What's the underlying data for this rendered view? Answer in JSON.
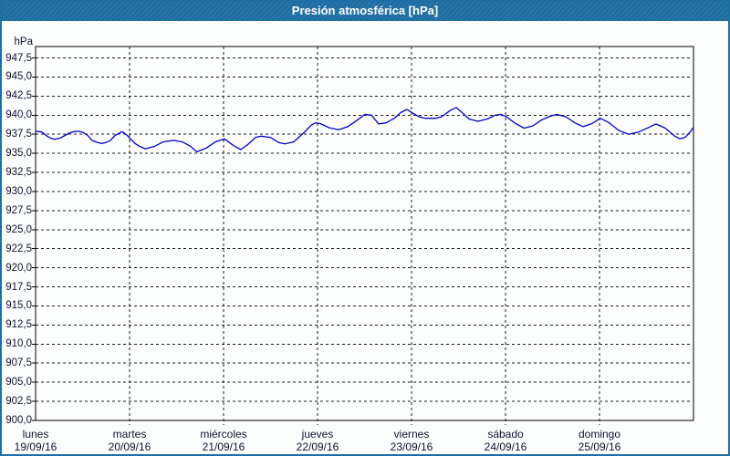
{
  "title": "Presión atmosférica [hPa]",
  "colors": {
    "title_bar": "#1E6FA5",
    "window_border": "#1E6FA5",
    "series_line": "#0000C8",
    "grid": "#1a1a1a",
    "axis_text": "#101030",
    "background": "#FCFEFD"
  },
  "y_axis": {
    "unit": "hPa",
    "ticks": [
      {
        "value": 947.5,
        "label": "947,5"
      },
      {
        "value": 945.0,
        "label": "945,0"
      },
      {
        "value": 942.5,
        "label": "942,5"
      },
      {
        "value": 940.0,
        "label": "940,0"
      },
      {
        "value": 937.5,
        "label": "937,5"
      },
      {
        "value": 935.0,
        "label": "935,0"
      },
      {
        "value": 932.5,
        "label": "932,5"
      },
      {
        "value": 930.0,
        "label": "930,0"
      },
      {
        "value": 927.5,
        "label": "927,5"
      },
      {
        "value": 925.0,
        "label": "925,0"
      },
      {
        "value": 922.5,
        "label": "922,5"
      },
      {
        "value": 920.0,
        "label": "920,0"
      },
      {
        "value": 917.5,
        "label": "917,5"
      },
      {
        "value": 915.0,
        "label": "915,0"
      },
      {
        "value": 912.5,
        "label": "912,5"
      },
      {
        "value": 910.0,
        "label": "910,0"
      },
      {
        "value": 907.5,
        "label": "907,5"
      },
      {
        "value": 905.0,
        "label": "905,0"
      },
      {
        "value": 902.5,
        "label": "902,5"
      },
      {
        "value": 900.0,
        "label": "900,0"
      }
    ]
  },
  "x_axis": {
    "days": [
      {
        "label": "lunes",
        "date": "19/09/16"
      },
      {
        "label": "martes",
        "date": "20/09/16"
      },
      {
        "label": "miércoles",
        "date": "21/09/16"
      },
      {
        "label": "jueves",
        "date": "22/09/16"
      },
      {
        "label": "viernes",
        "date": "23/09/16"
      },
      {
        "label": "sábado",
        "date": "24/09/16"
      },
      {
        "label": "domingo",
        "date": "25/09/16"
      }
    ]
  },
  "chart_data": {
    "type": "line",
    "title": "Presión atmosférica [hPa]",
    "xlabel": "",
    "ylabel": "hPa",
    "ylim": [
      900,
      949
    ],
    "xlim": [
      0,
      168
    ],
    "x_unit": "hours since lunes 19/09/16 00:00",
    "grid": "dashed",
    "legend": "none",
    "categories": [
      "lunes 19/09/16",
      "martes 20/09/16",
      "miércoles 21/09/16",
      "jueves 22/09/16",
      "viernes 23/09/16",
      "sábado 24/09/16",
      "domingo 25/09/16"
    ],
    "series": [
      {
        "name": "Presión atmosférica [hPa]",
        "color": "#0000C8",
        "points": [
          [
            0,
            937.9
          ],
          [
            1.6,
            937.8
          ],
          [
            2.8,
            937.3
          ],
          [
            4,
            936.95
          ],
          [
            4.9,
            936.85
          ],
          [
            6.3,
            937
          ],
          [
            7.5,
            937.35
          ],
          [
            8.6,
            937.65
          ],
          [
            9.8,
            937.85
          ],
          [
            11,
            937.9
          ],
          [
            12.1,
            937.75
          ],
          [
            13.3,
            937.35
          ],
          [
            14.4,
            936.7
          ],
          [
            15.6,
            936.45
          ],
          [
            16.8,
            936.3
          ],
          [
            17.9,
            936.4
          ],
          [
            19.1,
            936.7
          ],
          [
            20.3,
            937.35
          ],
          [
            21.4,
            937.65
          ],
          [
            22.1,
            937.85
          ],
          [
            23.3,
            937.4
          ],
          [
            24,
            937
          ],
          [
            25.4,
            936.3
          ],
          [
            26.6,
            935.9
          ],
          [
            28,
            935.6
          ],
          [
            30.3,
            935.9
          ],
          [
            32.6,
            936.5
          ],
          [
            35.2,
            936.7
          ],
          [
            37.5,
            936.5
          ],
          [
            39.6,
            935.9
          ],
          [
            41.2,
            935.2
          ],
          [
            43.6,
            935.7
          ],
          [
            45.9,
            936.5
          ],
          [
            48.2,
            936.9
          ],
          [
            50.6,
            936
          ],
          [
            52.4,
            935.5
          ],
          [
            54.3,
            936.2
          ],
          [
            56.2,
            937.1
          ],
          [
            57.6,
            937.25
          ],
          [
            59.9,
            937.1
          ],
          [
            62.2,
            936.4
          ],
          [
            63.6,
            936.25
          ],
          [
            65.9,
            936.5
          ],
          [
            68.3,
            937.6
          ],
          [
            70.4,
            938.7
          ],
          [
            71.5,
            939
          ],
          [
            72.7,
            938.9
          ],
          [
            75,
            938.35
          ],
          [
            77.4,
            938.1
          ],
          [
            79.7,
            938.5
          ],
          [
            82,
            939.3
          ],
          [
            84.1,
            940.1
          ],
          [
            85.8,
            940
          ],
          [
            87.6,
            938.85
          ],
          [
            89.5,
            939
          ],
          [
            91.6,
            939.6
          ],
          [
            93.4,
            940.4
          ],
          [
            94.8,
            940.75
          ],
          [
            96.2,
            940.3
          ],
          [
            97.9,
            939.8
          ],
          [
            99.5,
            939.6
          ],
          [
            102.1,
            939.6
          ],
          [
            103.7,
            939.8
          ],
          [
            105.8,
            940.6
          ],
          [
            107.4,
            941
          ],
          [
            109,
            940.3
          ],
          [
            110.7,
            939.5
          ],
          [
            113,
            939.2
          ],
          [
            115.3,
            939.5
          ],
          [
            117.4,
            940
          ],
          [
            118.8,
            940.1
          ],
          [
            120.2,
            939.8
          ],
          [
            122.3,
            939
          ],
          [
            124.7,
            938.3
          ],
          [
            127,
            938.6
          ],
          [
            129.3,
            939.4
          ],
          [
            131.6,
            939.9
          ],
          [
            133,
            940.1
          ],
          [
            135.4,
            939.8
          ],
          [
            137.7,
            939
          ],
          [
            139.8,
            938.5
          ],
          [
            142.1,
            938.9
          ],
          [
            144.2,
            939.6
          ],
          [
            146.5,
            939
          ],
          [
            148.9,
            938
          ],
          [
            151.4,
            937.5
          ],
          [
            154,
            937.8
          ],
          [
            156.6,
            938.4
          ],
          [
            158.4,
            938.85
          ],
          [
            160.8,
            938.3
          ],
          [
            163.1,
            937.3
          ],
          [
            164.5,
            936.9
          ],
          [
            165.9,
            937.1
          ],
          [
            167.3,
            937.9
          ],
          [
            168,
            938.4
          ]
        ]
      }
    ]
  }
}
